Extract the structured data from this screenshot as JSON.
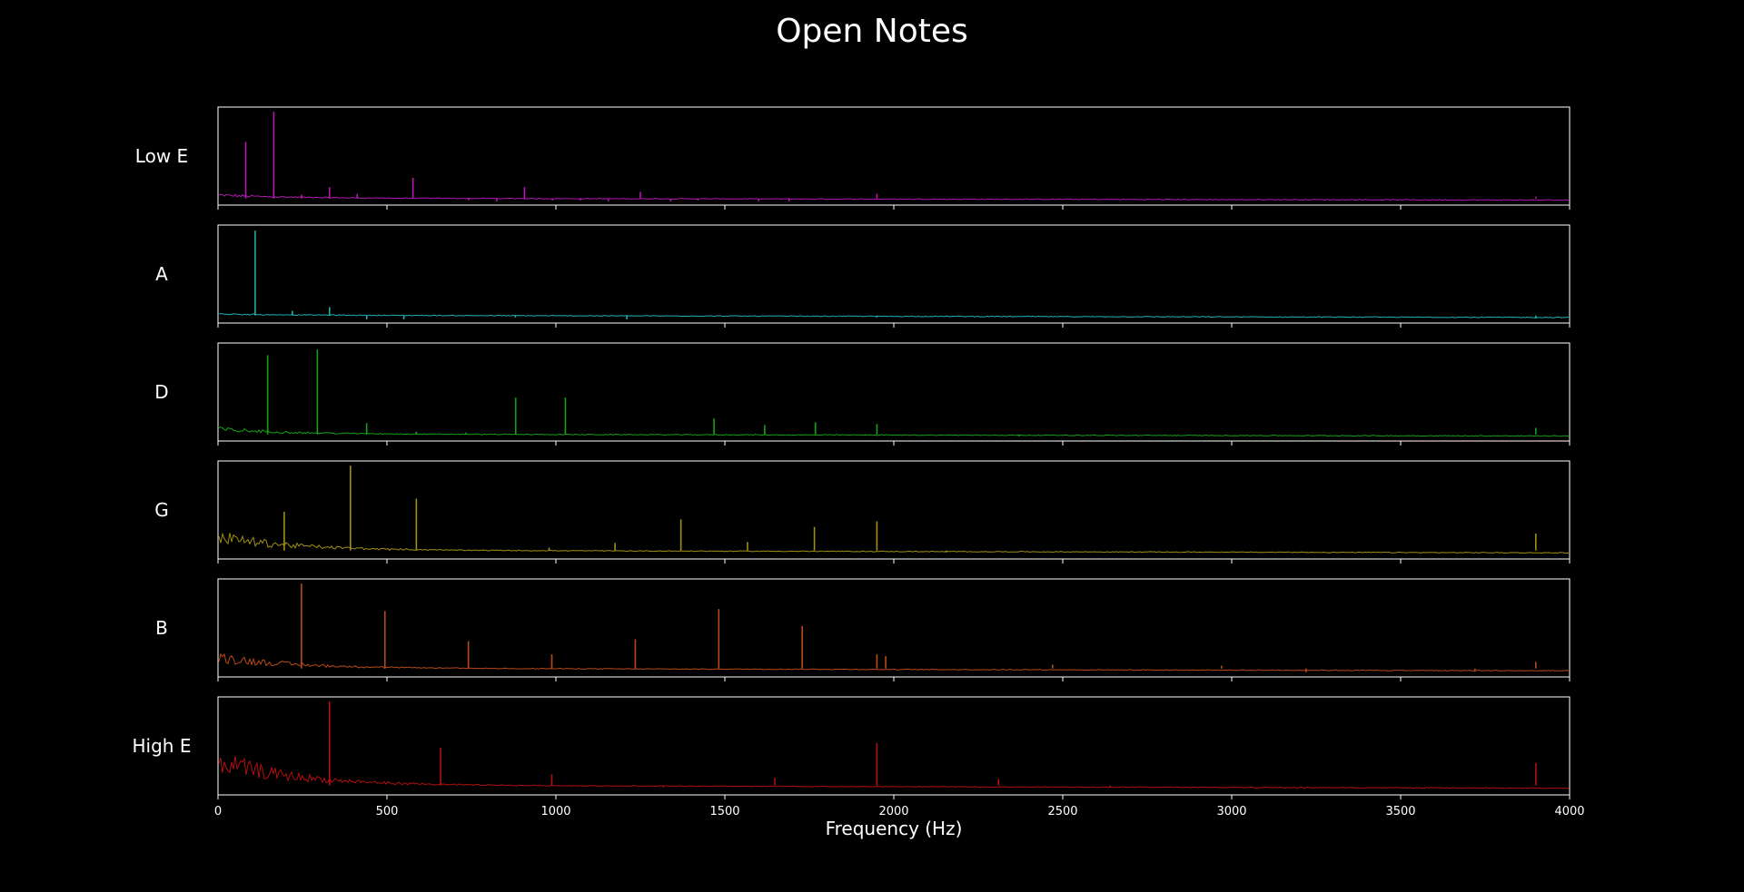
{
  "chart_data": {
    "type": "line",
    "title": "Open Notes",
    "xlabel": "Frequency (Hz)",
    "xlim": [
      0,
      4000
    ],
    "ylim": [
      0,
      1
    ],
    "x_ticks": [
      0,
      500,
      1000,
      1500,
      2000,
      2500,
      3000,
      3500,
      4000
    ],
    "y_ticks_shown": false,
    "grid": false,
    "background": "#000000",
    "frame_color": "#ffffff",
    "subplots": [
      {
        "name": "Low E",
        "color": "#b01ab0",
        "baseline": 0.05,
        "lowfreq_noise": 0.05,
        "peaks": [
          [
            82,
            0.65
          ],
          [
            165,
            0.97
          ],
          [
            247,
            0.09
          ],
          [
            330,
            0.17
          ],
          [
            412,
            0.1
          ],
          [
            495,
            0.05
          ],
          [
            577,
            0.27
          ],
          [
            660,
            0.05
          ],
          [
            742,
            0.03
          ],
          [
            825,
            0.02
          ],
          [
            907,
            0.17
          ],
          [
            990,
            0.03
          ],
          [
            1072,
            0.03
          ],
          [
            1155,
            0.02
          ],
          [
            1250,
            0.12
          ],
          [
            1340,
            0.02
          ],
          [
            1420,
            0.03
          ],
          [
            1600,
            0.02
          ],
          [
            1690,
            0.02
          ],
          [
            1780,
            0.05
          ],
          [
            1950,
            0.1
          ],
          [
            3900,
            0.07
          ]
        ]
      },
      {
        "name": "A",
        "color": "#20b0b0",
        "baseline": 0.06,
        "lowfreq_noise": 0.02,
        "peaks": [
          [
            110,
            0.96
          ],
          [
            220,
            0.11
          ],
          [
            330,
            0.15
          ],
          [
            440,
            0.02
          ],
          [
            550,
            0.02
          ],
          [
            880,
            0.04
          ],
          [
            1210,
            0.02
          ],
          [
            1950,
            0.04
          ],
          [
            3900,
            0.03
          ]
        ]
      },
      {
        "name": "D",
        "color": "#18a018",
        "baseline": 0.05,
        "lowfreq_noise": 0.08,
        "peaks": [
          [
            147,
            0.89
          ],
          [
            294,
            0.95
          ],
          [
            440,
            0.17
          ],
          [
            587,
            0.08
          ],
          [
            734,
            0.07
          ],
          [
            881,
            0.44
          ],
          [
            1028,
            0.44
          ],
          [
            1175,
            0.05
          ],
          [
            1468,
            0.22
          ],
          [
            1618,
            0.15
          ],
          [
            1768,
            0.18
          ],
          [
            1915,
            0.04
          ],
          [
            1950,
            0.16
          ],
          [
            2210,
            0.05
          ],
          [
            2370,
            0.03
          ],
          [
            3900,
            0.12
          ]
        ]
      },
      {
        "name": "G",
        "color": "#a08e18",
        "baseline": 0.07,
        "lowfreq_noise": 0.22,
        "peaks": [
          [
            196,
            0.48
          ],
          [
            392,
            0.97
          ],
          [
            587,
            0.62
          ],
          [
            784,
            0.08
          ],
          [
            980,
            0.1
          ],
          [
            1175,
            0.15
          ],
          [
            1370,
            0.4
          ],
          [
            1567,
            0.16
          ],
          [
            1765,
            0.32
          ],
          [
            1950,
            0.38
          ],
          [
            2155,
            0.05
          ],
          [
            2550,
            0.07
          ],
          [
            3900,
            0.25
          ]
        ]
      },
      {
        "name": "B",
        "color": "#b84a18",
        "baseline": 0.07,
        "lowfreq_noise": 0.18,
        "peaks": [
          [
            247,
            0.97
          ],
          [
            494,
            0.68
          ],
          [
            741,
            0.36
          ],
          [
            988,
            0.22
          ],
          [
            1235,
            0.38
          ],
          [
            1482,
            0.7
          ],
          [
            1729,
            0.52
          ],
          [
            1950,
            0.22
          ],
          [
            1976,
            0.2
          ],
          [
            2470,
            0.11
          ],
          [
            2970,
            0.1
          ],
          [
            3220,
            0.03
          ],
          [
            3720,
            0.04
          ],
          [
            3900,
            0.14
          ]
        ]
      },
      {
        "name": "High E",
        "color": "#b01010",
        "baseline": 0.08,
        "lowfreq_noise": 0.4,
        "peaks": [
          [
            330,
            0.97
          ],
          [
            659,
            0.48
          ],
          [
            988,
            0.2
          ],
          [
            1318,
            0.06
          ],
          [
            1648,
            0.16
          ],
          [
            1950,
            0.53
          ],
          [
            1976,
            0.08
          ],
          [
            2310,
            0.15
          ],
          [
            2640,
            0.06
          ],
          [
            3900,
            0.32
          ]
        ]
      }
    ]
  }
}
